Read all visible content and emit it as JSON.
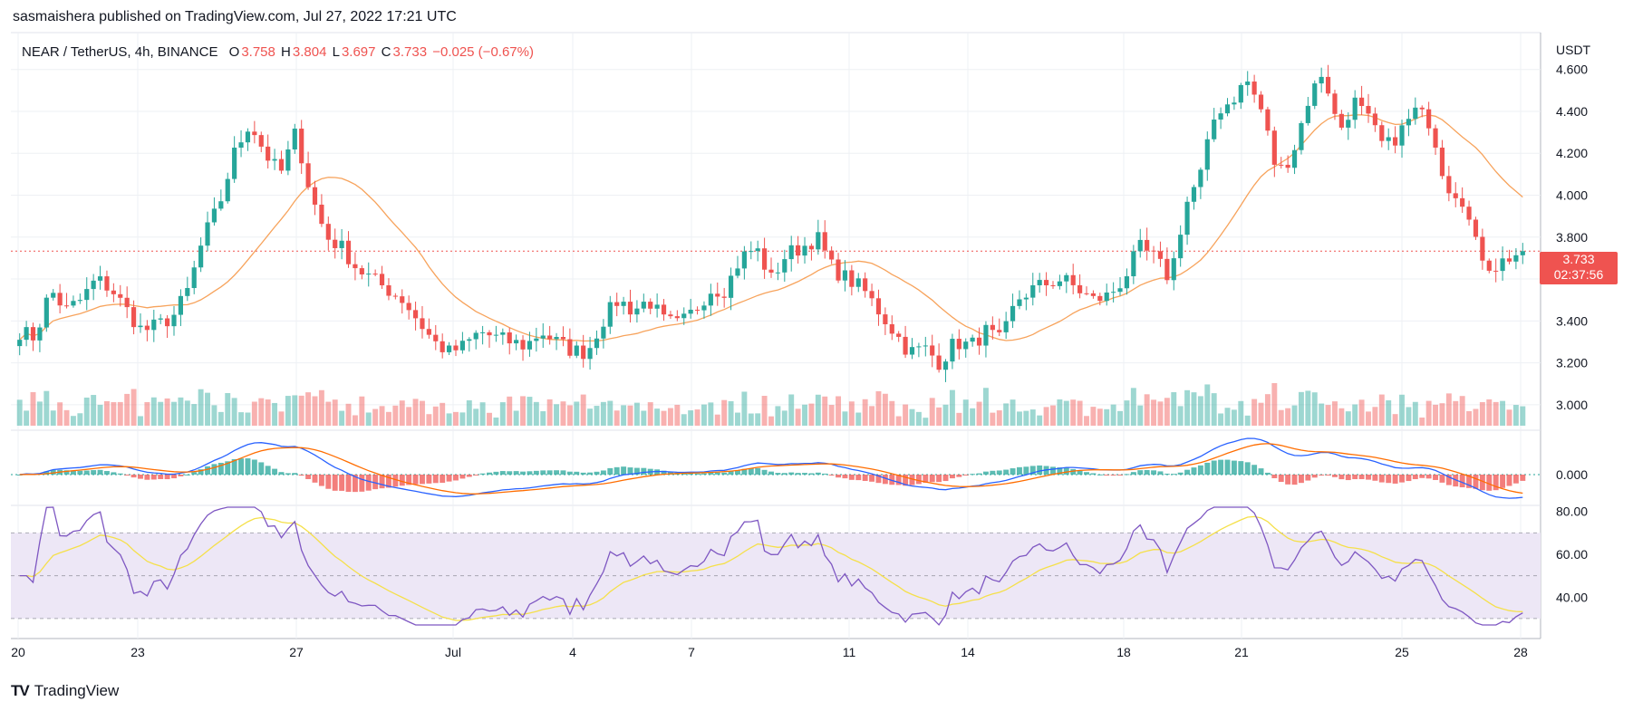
{
  "header": {
    "published_text": "sasmaishera published on TradingView.com, Jul 27, 2022 17:21 UTC"
  },
  "symbol": {
    "title": "NEAR / TetherUS, 4h, BINANCE",
    "o_label": "O",
    "o": "3.758",
    "h_label": "H",
    "h": "3.804",
    "l_label": "L",
    "l": "3.697",
    "c_label": "C",
    "c": "3.733",
    "change": "−0.025 (−0.67%)"
  },
  "price_tag": {
    "price": "3.733",
    "countdown": "02:37:56"
  },
  "footer": {
    "brand": "TradingView",
    "logo": "tradingview-logo-icon"
  },
  "colors": {
    "up": "#26a69a",
    "down": "#ef5350",
    "ma": "#f7a35c",
    "macd": "#2962ff",
    "signal": "#ff6d00",
    "rsi": "#7e57c2",
    "rsi_ma": "#f5e04a",
    "rsi_band": "#ede7f6",
    "grid": "#eef0f4",
    "axis_text": "#131722"
  },
  "chart_data": [
    {
      "type": "candlestick",
      "title": "NEAR / TetherUS, 4h, BINANCE",
      "price_axis": {
        "unit": "USDT",
        "ticks": [
          3.0,
          3.2,
          3.4,
          3.6,
          3.8,
          4.0,
          4.2,
          4.4,
          4.6
        ],
        "tick_labels": [
          "3.000",
          "3.200",
          "3.400",
          "3.600",
          "3.800",
          "4.000",
          "4.200",
          "4.400",
          "4.600"
        ],
        "range": [
          2.9,
          4.75
        ]
      },
      "time_axis": {
        "ticks": [
          "20",
          "23",
          "27",
          "Jul",
          "4",
          "7",
          "11",
          "14",
          "18",
          "21",
          "25",
          "28"
        ]
      },
      "last_price": 3.733,
      "close_anchors": [
        3.35,
        3.32,
        3.55,
        3.45,
        3.5,
        3.6,
        3.55,
        3.45,
        3.35,
        3.38,
        3.42,
        3.55,
        3.8,
        3.95,
        4.2,
        4.35,
        4.2,
        4.1,
        4.3,
        4.0,
        3.8,
        3.75,
        3.65,
        3.6,
        3.55,
        3.5,
        3.4,
        3.3,
        3.25,
        3.28,
        3.35,
        3.32,
        3.3,
        3.28,
        3.35,
        3.3,
        3.26,
        3.25,
        3.4,
        3.5,
        3.45,
        3.5,
        3.4,
        3.38,
        3.45,
        3.55,
        3.55,
        3.7,
        3.75,
        3.6,
        3.72,
        3.75,
        3.8,
        3.65,
        3.6,
        3.55,
        3.45,
        3.35,
        3.25,
        3.27,
        3.2,
        3.3,
        3.28,
        3.35,
        3.3,
        3.5,
        3.55,
        3.58,
        3.6,
        3.55,
        3.5,
        3.52,
        3.6,
        3.75,
        3.7,
        3.6,
        3.95,
        4.1,
        4.4,
        4.45,
        4.55,
        4.4,
        4.1,
        4.2,
        4.45,
        4.6,
        4.3,
        4.45,
        4.35,
        4.22,
        4.3,
        4.4,
        4.35,
        4.05,
        4.0,
        3.75,
        3.65,
        3.7,
        3.73
      ],
      "volume": {
        "style": "histogram"
      },
      "overlays": [
        {
          "name": "moving-average",
          "color": "#f7a35c"
        }
      ],
      "price_label": {
        "value": "3.733",
        "countdown": "02:37:56"
      },
      "macd_panel": {
        "ticks": [
          0.0
        ],
        "tick_labels": [
          "0.000"
        ]
      },
      "rsi_panel": {
        "ticks": [
          40,
          60,
          80
        ],
        "tick_labels": [
          "40.00",
          "60.00",
          "80.00"
        ],
        "bands": [
          30,
          70
        ],
        "midline": 50,
        "range": [
          27,
          82
        ]
      }
    }
  ]
}
